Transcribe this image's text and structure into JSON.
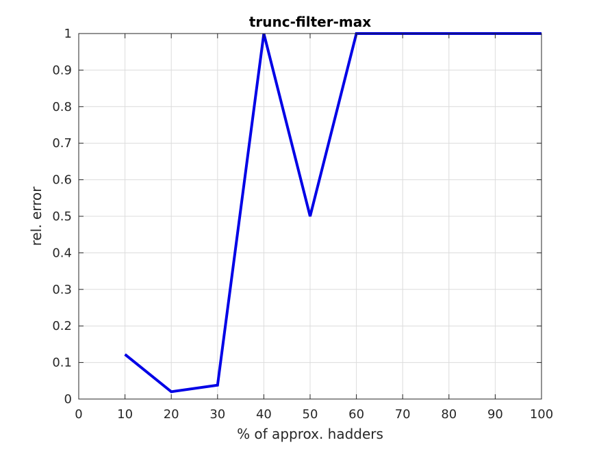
{
  "chart_data": {
    "type": "line",
    "title": "trunc-filter-max",
    "xlabel": "% of approx. hadders",
    "ylabel": "rel. error",
    "xlim": [
      0,
      100
    ],
    "ylim": [
      0,
      1
    ],
    "xticks": [
      0,
      10,
      20,
      30,
      40,
      50,
      60,
      70,
      80,
      90,
      100
    ],
    "yticks": [
      0,
      0.1,
      0.2,
      0.3,
      0.4,
      0.5,
      0.6,
      0.7,
      0.8,
      0.9,
      1
    ],
    "grid": true,
    "series": [
      {
        "color": "#0000e6",
        "x": [
          10,
          20,
          30,
          40,
          50,
          60,
          70,
          80,
          90,
          100
        ],
        "y": [
          0.122,
          0.02,
          0.038,
          1.0,
          0.5,
          1.0,
          1.0,
          1.0,
          1.0,
          1.0
        ]
      }
    ]
  }
}
